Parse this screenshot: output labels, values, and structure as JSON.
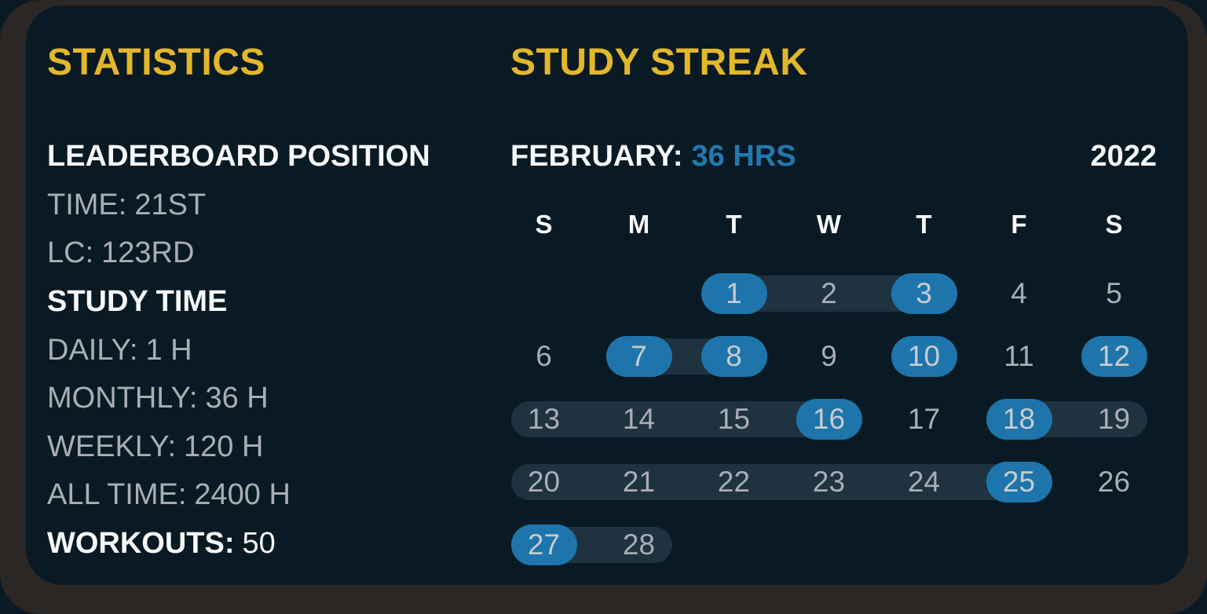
{
  "theme": {
    "outer_bg": "#2b2724",
    "card_bg": "#0a1a24",
    "accent_yellow": "#e3b72b",
    "accent_blue": "#2279ae",
    "pill_blue": "#1e75ab",
    "range_bg": "#1e3240",
    "text_white": "#f5f7f8",
    "text_gray": "#a9aeb3",
    "day_on_pill": "#c6ccd1"
  },
  "statistics": {
    "title": "STATISTICS",
    "leaderboard": {
      "heading": "LEADERBOARD POSITION",
      "items": [
        {
          "label": "TIME:",
          "value": "21ST"
        },
        {
          "label": "LC:",
          "value": "123RD"
        }
      ]
    },
    "study_time": {
      "heading": "STUDY TIME",
      "items": [
        {
          "label": "DAILY:",
          "value": "1 H"
        },
        {
          "label": "MONTHLY:",
          "value": "36 H"
        },
        {
          "label": "WEEKLY:",
          "value": "120 H"
        },
        {
          "label": "ALL TIME:",
          "value": "2400 H"
        }
      ]
    },
    "workouts": {
      "label": "WORKOUTS:",
      "value": "50"
    }
  },
  "study_streak": {
    "title": "STUDY STREAK",
    "month_label": "FEBRUARY:",
    "month_total": "36 HRS",
    "year": "2022",
    "day_headers": [
      "S",
      "M",
      "T",
      "W",
      "T",
      "F",
      "S"
    ],
    "first_day_column": 2,
    "days_in_month": 28,
    "active_days": [
      1,
      3,
      7,
      8,
      10,
      12,
      16,
      18,
      25,
      27
    ],
    "streak_ranges": [
      [
        1,
        3
      ],
      [
        7,
        8
      ],
      [
        13,
        16
      ],
      [
        18,
        19
      ],
      [
        20,
        25
      ],
      [
        27,
        28
      ]
    ]
  }
}
